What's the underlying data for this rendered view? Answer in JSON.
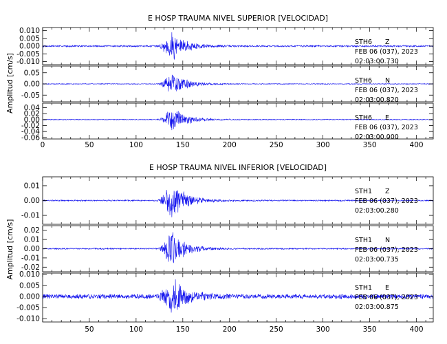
{
  "chart_data": [
    {
      "type": "line",
      "title": "E HOSP TRAUMA NIVEL SUPERIOR [VELOCIDAD]",
      "ylabel": "Amplitud [cm/s]",
      "xlabel": "",
      "xlim": [
        0,
        418
      ],
      "x_ticks": [
        "0",
        "50",
        "100",
        "150",
        "200",
        "250",
        "300",
        "350",
        "400"
      ],
      "onset_s": 122,
      "peak_s": 138,
      "series_color": "#1010ee",
      "traces": [
        {
          "station": "STH6",
          "component": "Z",
          "date": "FEB 06 (037), 2023",
          "time": "02:03:00.730",
          "ylim": [
            -0.012,
            0.012
          ],
          "y_ticks": [
            "0.010",
            "0.005",
            "0.000",
            "-0.005",
            "-0.010"
          ],
          "peak_amplitude": 0.011,
          "noise_amplitude": 0.0006
        },
        {
          "station": "STH6",
          "component": "N",
          "date": "FEB 06 (037), 2023",
          "time": "02:03:00.820",
          "ylim": [
            -0.08,
            0.08
          ],
          "y_ticks": [
            "0.05",
            "0.00",
            "-0.05"
          ],
          "peak_amplitude": 0.06,
          "noise_amplitude": 0.002
        },
        {
          "station": "STH6",
          "component": "E",
          "date": "FEB 06 (037), 2023",
          "time": "02:03:00.000",
          "ylim": [
            -0.065,
            0.055
          ],
          "y_ticks": [
            "0.04",
            "0.02",
            "0.00",
            "-0.02",
            "-0.04",
            "-0.06"
          ],
          "peak_amplitude": 0.05,
          "noise_amplitude": 0.0015
        }
      ]
    },
    {
      "type": "line",
      "title": "E HOSP TRAUMA NIVEL INFERIOR [VELOCIDAD]",
      "ylabel": "Amplitud [cm/s]",
      "xlabel": "",
      "xlim": [
        0,
        418
      ],
      "x_ticks": [
        "50",
        "100",
        "150",
        "200",
        "250",
        "300",
        "350",
        "400"
      ],
      "onset_s": 122,
      "peak_s": 138,
      "series_color": "#1010ee",
      "traces": [
        {
          "station": "STH1",
          "component": "Z",
          "date": "FEB 06 (037), 2023",
          "time": "02:03:00.280",
          "ylim": [
            -0.016,
            0.016
          ],
          "y_ticks": [
            "0.01",
            "0.00",
            "-0.01"
          ],
          "peak_amplitude": 0.015,
          "noise_amplitude": 0.0005
        },
        {
          "station": "STH1",
          "component": "N",
          "date": "FEB 06 (037), 2023",
          "time": "02:03:00.735",
          "ylim": [
            -0.025,
            0.025
          ],
          "y_ticks": [
            "0.02",
            "0.01",
            "0.00",
            "-0.01",
            "-0.02"
          ],
          "peak_amplitude": 0.022,
          "noise_amplitude": 0.0008
        },
        {
          "station": "STH1",
          "component": "E",
          "date": "FEB 06 (037), 2023",
          "time": "02:03:00.875",
          "ylim": [
            -0.0115,
            0.0105
          ],
          "y_ticks": [
            "0.010",
            "0.005",
            "0.000",
            "-0.005",
            "-0.010"
          ],
          "peak_amplitude": 0.0105,
          "noise_amplitude": 0.0012
        }
      ]
    }
  ]
}
